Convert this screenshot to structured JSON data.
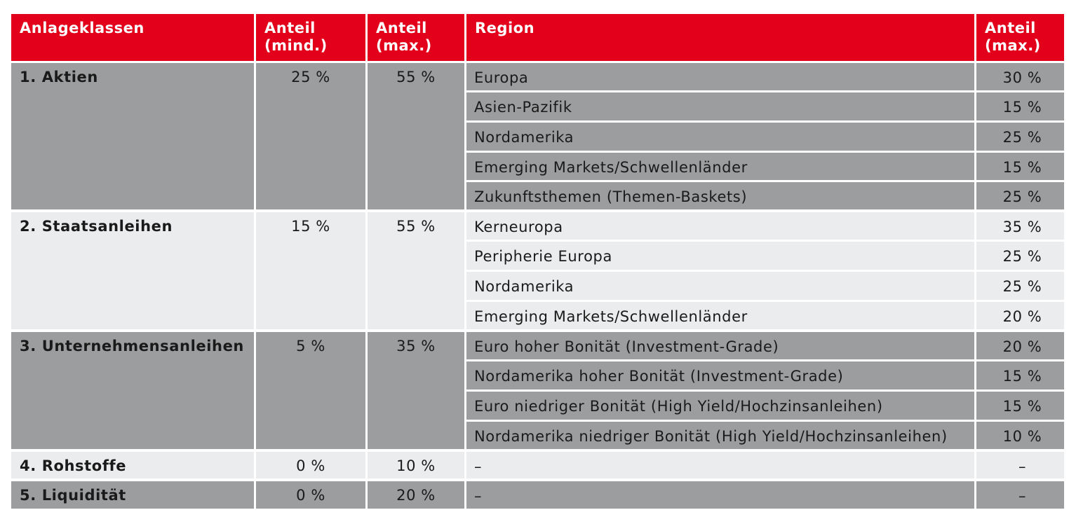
{
  "header": {
    "col1": "Anlageklassen",
    "col2_line1": "Anteil",
    "col2_line2": "(mind.)",
    "col3_line1": "Anteil",
    "col3_line2": "(max.)",
    "col4": "Region",
    "col5_line1": "Anteil",
    "col5_line2": "(max.)"
  },
  "groups": [
    {
      "name": "1. Aktien",
      "min": "25 %",
      "max": "55 %",
      "regions": [
        {
          "name": "Europa",
          "max": "30 %"
        },
        {
          "name": "Asien-Pazifik",
          "max": "15 %"
        },
        {
          "name": "Nordamerika",
          "max": "25 %"
        },
        {
          "name": "Emerging Markets/Schwellenländer",
          "max": "15 %"
        },
        {
          "name": "Zukunftsthemen (Themen-Baskets)",
          "max": "25 %"
        }
      ]
    },
    {
      "name": "2. Staatsanleihen",
      "min": "15 %",
      "max": "55 %",
      "regions": [
        {
          "name": "Kerneuropa",
          "max": "35 %"
        },
        {
          "name": "Peripherie Europa",
          "max": "25 %"
        },
        {
          "name": "Nordamerika",
          "max": "25 %"
        },
        {
          "name": "Emerging Markets/Schwellenländer",
          "max": "20 %"
        }
      ]
    },
    {
      "name": "3. Unternehmensanleihen",
      "min": "5 %",
      "max": "35 %",
      "regions": [
        {
          "name": "Euro hoher Bonität (Investment-Grade)",
          "max": "20 %"
        },
        {
          "name": "Nordamerika hoher Bonität (Investment-Grade)",
          "max": "15 %"
        },
        {
          "name": "Euro niedriger Bonität (High Yield/Hochzinsanleihen)",
          "max": "15 %"
        },
        {
          "name": "Nordamerika niedriger Bonität (High Yield/Hochzinsanleihen)",
          "max": "10 %"
        }
      ]
    },
    {
      "name": "4. Rohstoffe",
      "min": "0 %",
      "max": "10 %",
      "regions": [
        {
          "name": "–",
          "max": "–"
        }
      ]
    },
    {
      "name": "5. Liquidität",
      "min": "0 %",
      "max": "20 %",
      "regions": [
        {
          "name": "–",
          "max": "–"
        }
      ]
    }
  ],
  "colors": {
    "header_red": "#e2001a",
    "dark_row": "#9c9d9f",
    "light_row": "#ebeced"
  }
}
